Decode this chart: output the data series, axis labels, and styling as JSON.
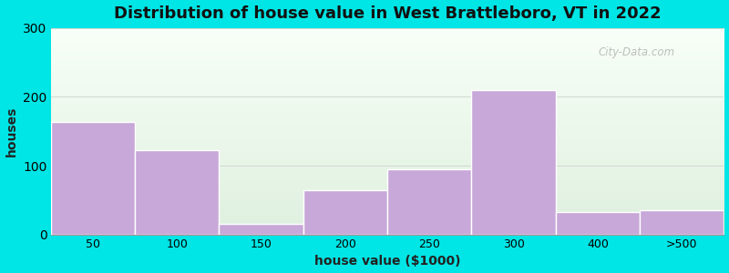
{
  "categories": [
    "50",
    "100",
    "150",
    "200",
    "250",
    "300",
    "400",
    ">500"
  ],
  "values": [
    163,
    122,
    15,
    65,
    95,
    210,
    33,
    35
  ],
  "bar_color": "#c8a8d8",
  "title": "Distribution of house value in West Brattleboro, VT in 2022",
  "xlabel": "house value ($1000)",
  "ylabel": "houses",
  "ylim": [
    0,
    300
  ],
  "yticks": [
    0,
    100,
    200,
    300
  ],
  "background_outer": "#00e5e5",
  "bg_top_color": "#dff0df",
  "bg_bottom_color": "#f8fff8",
  "title_fontsize": 13,
  "axis_label_fontsize": 10,
  "tick_fontsize": 9,
  "grid_color": "#d0d8d0",
  "watermark_text": "City-Data.com"
}
